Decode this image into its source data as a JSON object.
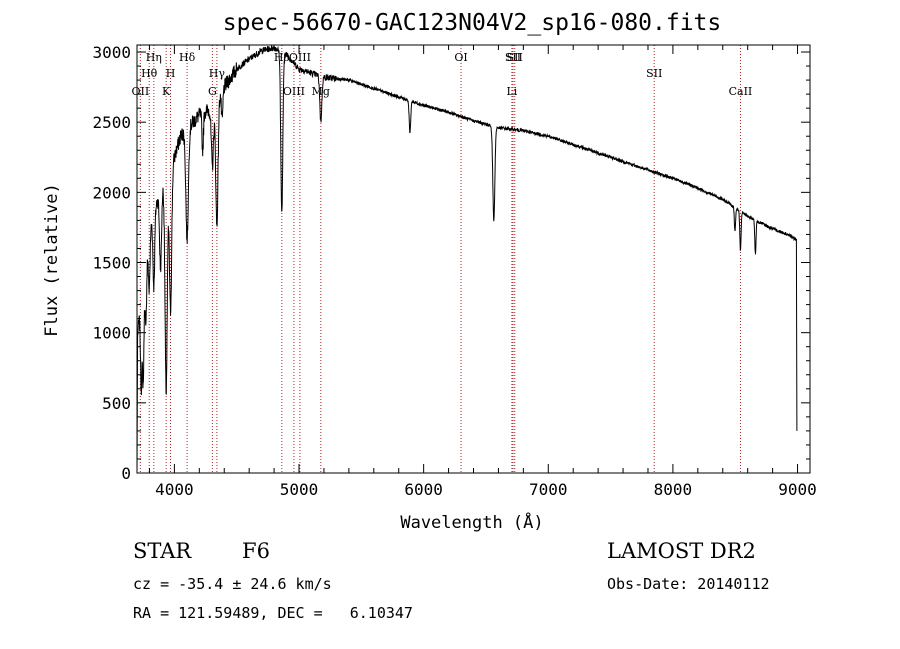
{
  "chart_data": {
    "type": "line",
    "title": "spec-56670-GAC123N04V2_sp16-080.fits",
    "xlabel": "Wavelength (Å)",
    "ylabel": "Flux (relative)",
    "xlim": [
      3700,
      9100
    ],
    "ylim": [
      0,
      3050
    ],
    "xticks": [
      4000,
      5000,
      6000,
      7000,
      8000,
      9000
    ],
    "yticks": [
      0,
      500,
      1000,
      1500,
      2000,
      2500,
      3000
    ],
    "grid": false,
    "line_color": "#000000",
    "marker_color": "#b22222",
    "lines": [
      {
        "label": "OII",
        "wave": 3727,
        "row": 3
      },
      {
        "label": "Hθ",
        "wave": 3798,
        "row": 2
      },
      {
        "label": "Hη",
        "wave": 3835,
        "row": 1
      },
      {
        "label": "K",
        "wave": 3934,
        "row": 3
      },
      {
        "label": "H",
        "wave": 3969,
        "row": 2
      },
      {
        "label": "Hδ",
        "wave": 4102,
        "row": 1
      },
      {
        "label": "G",
        "wave": 4305,
        "row": 3
      },
      {
        "label": "Hγ",
        "wave": 4341,
        "row": 2
      },
      {
        "label": "Hβ",
        "wave": 4862,
        "row": 1
      },
      {
        "label": "OIII",
        "wave": 4959,
        "row": 3
      },
      {
        "label": "OIII",
        "wave": 5007,
        "row": 1
      },
      {
        "label": "Mg",
        "wave": 5175,
        "row": 3
      },
      {
        "label": "OI",
        "wave": 6300,
        "row": 1
      },
      {
        "label": "Li",
        "wave": 6708,
        "row": 3
      },
      {
        "label": "SII",
        "wave": 6717,
        "row": 1
      },
      {
        "label": "SII",
        "wave": 6731,
        "row": 1
      },
      {
        "label": "SII",
        "wave": 7850,
        "row": 2
      },
      {
        "label": "CaII",
        "wave": 8542,
        "row": 3
      }
    ],
    "continuum": [
      [
        3700,
        950
      ],
      [
        3750,
        1350
      ],
      [
        3800,
        1750
      ],
      [
        3850,
        1900
      ],
      [
        3900,
        2050
      ],
      [
        3950,
        2100
      ],
      [
        4000,
        2250
      ],
      [
        4050,
        2400
      ],
      [
        4100,
        2450
      ],
      [
        4200,
        2550
      ],
      [
        4300,
        2600
      ],
      [
        4400,
        2750
      ],
      [
        4500,
        2880
      ],
      [
        4600,
        2950
      ],
      [
        4700,
        3010
      ],
      [
        4800,
        3030
      ],
      [
        4900,
        2980
      ],
      [
        5000,
        2880
      ],
      [
        5100,
        2850
      ],
      [
        5200,
        2820
      ],
      [
        5400,
        2800
      ],
      [
        5600,
        2740
      ],
      [
        5800,
        2680
      ],
      [
        6000,
        2620
      ],
      [
        6200,
        2570
      ],
      [
        6400,
        2510
      ],
      [
        6600,
        2460
      ],
      [
        6800,
        2440
      ],
      [
        7000,
        2400
      ],
      [
        7200,
        2340
      ],
      [
        7400,
        2280
      ],
      [
        7600,
        2220
      ],
      [
        7800,
        2160
      ],
      [
        8000,
        2100
      ],
      [
        8200,
        2030
      ],
      [
        8400,
        1950
      ],
      [
        8600,
        1830
      ],
      [
        8800,
        1740
      ],
      [
        8950,
        1690
      ],
      [
        9000,
        1650
      ]
    ],
    "absorption": [
      {
        "wave": 3734,
        "depth": 600,
        "width": 6
      },
      {
        "wave": 3750,
        "depth": 700,
        "width": 6
      },
      {
        "wave": 3771,
        "depth": 500,
        "width": 6
      },
      {
        "wave": 3798,
        "depth": 420,
        "width": 7
      },
      {
        "wave": 3835,
        "depth": 520,
        "width": 7
      },
      {
        "wave": 3889,
        "depth": 560,
        "width": 8
      },
      {
        "wave": 3934,
        "depth": 1500,
        "width": 9
      },
      {
        "wave": 3969,
        "depth": 1000,
        "width": 9
      },
      {
        "wave": 4102,
        "depth": 780,
        "width": 10
      },
      {
        "wave": 4227,
        "depth": 260,
        "width": 6
      },
      {
        "wave": 4305,
        "depth": 420,
        "width": 9
      },
      {
        "wave": 4341,
        "depth": 900,
        "width": 9
      },
      {
        "wave": 4383,
        "depth": 220,
        "width": 6
      },
      {
        "wave": 4862,
        "depth": 1150,
        "width": 8
      },
      {
        "wave": 5175,
        "depth": 320,
        "width": 8
      },
      {
        "wave": 5890,
        "depth": 230,
        "width": 6
      },
      {
        "wave": 6563,
        "depth": 670,
        "width": 8
      },
      {
        "wave": 8498,
        "depth": 160,
        "width": 5
      },
      {
        "wave": 8542,
        "depth": 280,
        "width": 5
      },
      {
        "wave": 8662,
        "depth": 240,
        "width": 5
      }
    ],
    "edges": [
      {
        "wave": 3700,
        "flux": 0
      },
      {
        "wave": 8995,
        "flux": 300
      }
    ]
  },
  "info": {
    "object_class": "STAR",
    "subclass": "F6",
    "cz": "cz = -35.4 ± 24.6 km/s",
    "coords": "RA = 121.59489, DEC =   6.10347",
    "survey": "LAMOST DR2",
    "obs_date": "Obs-Date: 20140112"
  }
}
